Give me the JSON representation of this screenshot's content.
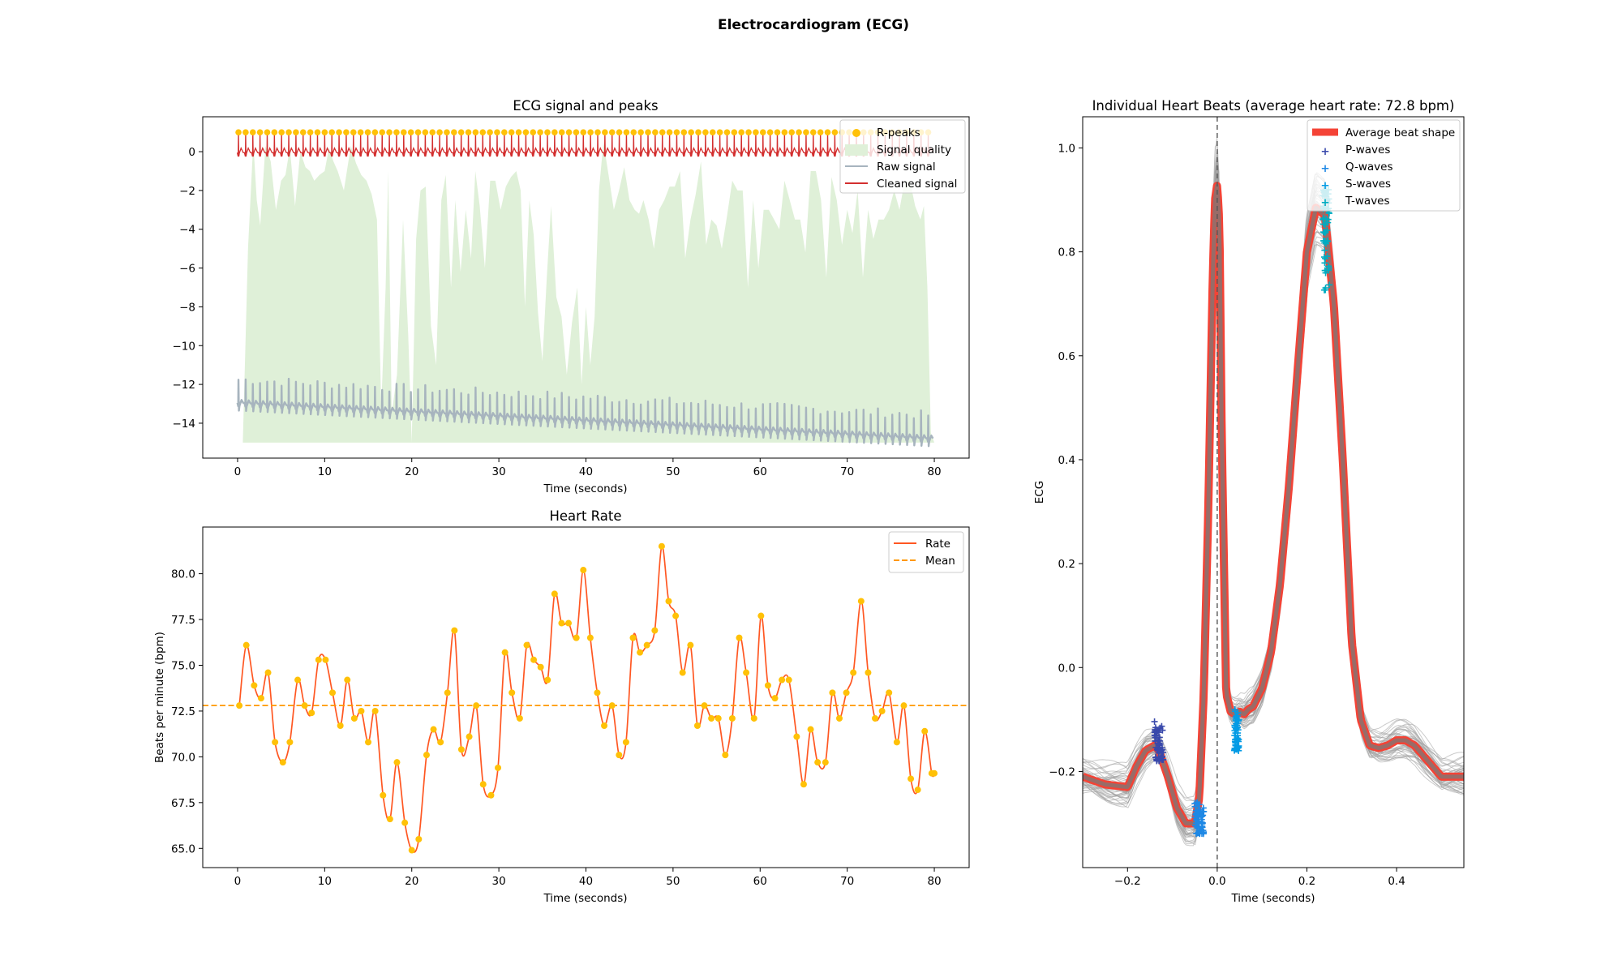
{
  "figure": {
    "suptitle": "Electrocardiogram (ECG)"
  },
  "chart_data": [
    {
      "type": "line",
      "title": "ECG signal and peaks",
      "xlabel": "Time (seconds)",
      "ylabel": "",
      "xlim": [
        -4,
        84
      ],
      "ylim": [
        -15.8,
        1.8
      ],
      "xticks": [
        0,
        10,
        20,
        30,
        40,
        50,
        60,
        70,
        80
      ],
      "yticks": [
        0,
        -2,
        -4,
        -6,
        -8,
        -10,
        -12,
        -14
      ],
      "ytick_labels": [
        "0",
        "−2",
        "−4",
        "−6",
        "−8",
        "−10",
        "−12",
        "−14"
      ],
      "legend_position": "upper right",
      "series": [
        {
          "name": "R-peaks",
          "kind": "markers",
          "color": "#FFC107",
          "y_value": 1.0,
          "beat_interval_s": 0.825,
          "x_range": [
            0.1,
            80.0
          ]
        },
        {
          "name": "Signal quality",
          "kind": "area",
          "color": "#DFF0D8",
          "baseline": -15,
          "x": [
            0.0,
            0.6,
            1.2,
            1.8,
            2.2,
            2.6,
            3.2,
            3.8,
            4.4,
            5.0,
            5.5,
            6.0,
            6.6,
            7.2,
            7.8,
            8.3,
            8.8,
            9.4,
            10.0,
            10.5,
            11.0,
            11.5,
            12.2,
            13.0,
            13.6,
            14.2,
            14.8,
            15.4,
            16.0,
            16.5,
            17.0,
            17.3,
            17.7,
            18.3,
            19.0,
            19.6,
            20.0,
            20.5,
            21.0,
            21.6,
            22.2,
            22.8,
            23.4,
            23.9,
            24.5,
            25.0,
            25.6,
            26.2,
            26.8,
            27.3,
            27.8,
            28.4,
            29.0,
            29.6,
            30.2,
            30.8,
            31.4,
            32.0,
            32.5,
            33.0,
            33.5,
            34.0,
            34.5,
            35.0,
            35.5,
            36.0,
            36.6,
            37.2,
            37.8,
            38.4,
            39.0,
            39.5,
            40.0,
            40.5,
            41.0,
            41.5,
            42.0,
            42.6,
            43.2,
            43.8,
            44.4,
            45.0,
            45.6,
            46.1,
            46.6,
            47.2,
            47.8,
            48.4,
            49.0,
            49.6,
            50.2,
            50.8,
            51.4,
            52.0,
            52.6,
            53.2,
            53.8,
            54.4,
            55.0,
            55.6,
            56.2,
            56.8,
            57.4,
            58.0,
            58.6,
            59.2,
            59.8,
            60.4,
            61.0,
            61.6,
            62.2,
            62.8,
            63.4,
            64.0,
            64.6,
            65.2,
            65.8,
            66.4,
            67.0,
            67.6,
            68.2,
            68.8,
            69.4,
            70.0,
            70.6,
            71.2,
            71.8,
            72.4,
            73.0,
            73.6,
            74.2,
            74.8,
            75.4,
            76.0,
            76.6,
            77.2,
            77.8,
            78.4,
            78.8,
            79.2,
            79.6,
            80.0
          ],
          "y": [
            -15.0,
            -15.0,
            -5.0,
            0.5,
            -2.5,
            -3.8,
            0.3,
            -0.5,
            -3.0,
            -1.5,
            -1.2,
            0.2,
            -2.8,
            0.0,
            -0.8,
            -1.0,
            -1.5,
            -1.2,
            -1.0,
            0.2,
            -0.5,
            -1.0,
            -2.0,
            0.3,
            -0.6,
            -1.2,
            -1.5,
            -2.2,
            -3.5,
            -13.2,
            -7.0,
            -1.0,
            -13.5,
            -11.5,
            -3.5,
            -9.5,
            -15.0,
            -4.5,
            -2.0,
            -1.8,
            -9.0,
            -11.0,
            -2.5,
            -1.2,
            -7.0,
            -2.5,
            -6.2,
            -3.0,
            -5.5,
            -1.0,
            -2.8,
            -6.0,
            -1.5,
            -1.5,
            -3.0,
            -1.8,
            -1.3,
            -1.0,
            -2.0,
            -8.0,
            -2.5,
            -4.3,
            -8.3,
            -10.8,
            -6.5,
            -2.8,
            -7.5,
            -8.5,
            -11.5,
            -8.8,
            -7.0,
            -12.0,
            -8.0,
            -11.0,
            -8.5,
            -2.0,
            0.5,
            -1.2,
            -3.0,
            -2.0,
            -0.8,
            -2.5,
            -3.0,
            -3.2,
            -2.5,
            -3.5,
            -5.0,
            -3.0,
            -2.5,
            -1.8,
            -1.8,
            -1.0,
            -5.5,
            -3.5,
            -2.2,
            -0.5,
            -4.8,
            -3.5,
            -3.8,
            -5.0,
            -3.3,
            -1.5,
            -2.0,
            -2.0,
            -7.0,
            -2.5,
            -6.0,
            -3.0,
            -3.0,
            -3.5,
            -4.0,
            -1.5,
            -2.5,
            -3.5,
            -3.5,
            -5.2,
            -1.0,
            -1.0,
            -2.5,
            -6.5,
            -1.3,
            -2.5,
            -4.8,
            -3.0,
            -4.2,
            -2.0,
            -6.5,
            -3.0,
            -4.5,
            -3.5,
            -3.5,
            -3.0,
            -2.0,
            -3.0,
            -1.5,
            -1.5,
            -2.8,
            -3.5,
            -2.8,
            -7.0,
            -14.5,
            -15.0
          ]
        },
        {
          "name": "Raw signal",
          "kind": "line",
          "color": "#A7B4BE",
          "baseline_start": -13.0,
          "baseline_end": -14.85,
          "peak_amplitude": 1.35
        },
        {
          "name": "Cleaned signal",
          "kind": "line",
          "color": "#D32F2F",
          "baseline": 0.0,
          "peak_value": 1.0,
          "trough_value": -0.25
        }
      ]
    },
    {
      "type": "line",
      "title": "Heart Rate",
      "xlabel": "Time (seconds)",
      "ylabel": "Beats per minute (bpm)",
      "xlim": [
        -4,
        84
      ],
      "ylim": [
        63.95,
        82.55
      ],
      "xticks": [
        0,
        10,
        20,
        30,
        40,
        50,
        60,
        70,
        80
      ],
      "yticks": [
        65.0,
        67.5,
        70.0,
        72.5,
        75.0,
        77.5,
        80.0
      ],
      "ytick_labels": [
        "65.0",
        "67.5",
        "70.0",
        "72.5",
        "75.0",
        "77.5",
        "80.0"
      ],
      "legend_position": "upper right",
      "series": [
        {
          "name": "Rate",
          "color": "#FF5722",
          "marker_color": "#FFC107",
          "x": [
            0.2,
            1.0,
            1.9,
            2.7,
            3.5,
            4.3,
            5.2,
            6.0,
            6.9,
            7.7,
            8.5,
            9.3,
            10.1,
            10.9,
            11.8,
            12.6,
            13.4,
            14.2,
            15.0,
            15.8,
            16.7,
            17.5,
            18.3,
            19.2,
            20.0,
            20.8,
            21.7,
            22.5,
            23.3,
            24.1,
            24.9,
            25.7,
            26.6,
            27.4,
            28.2,
            29.1,
            29.9,
            30.7,
            31.5,
            32.4,
            33.2,
            34.0,
            34.8,
            35.6,
            36.4,
            37.2,
            38.0,
            38.9,
            39.7,
            40.5,
            41.3,
            42.1,
            43.0,
            43.8,
            44.6,
            45.4,
            46.2,
            47.0,
            47.9,
            48.7,
            49.5,
            50.3,
            51.1,
            52.0,
            52.8,
            53.6,
            54.4,
            55.2,
            56.0,
            56.8,
            57.6,
            58.4,
            59.3,
            60.1,
            60.9,
            61.7,
            62.5,
            63.3,
            64.2,
            65.0,
            65.8,
            66.6,
            67.5,
            68.3,
            69.1,
            69.9,
            70.7,
            71.6,
            72.4,
            73.2,
            74.0,
            74.8,
            75.7,
            76.5,
            77.3,
            78.1,
            78.9,
            79.7,
            80.0
          ],
          "y": [
            72.8,
            76.1,
            73.9,
            73.2,
            74.6,
            70.8,
            69.7,
            70.8,
            74.2,
            72.8,
            72.4,
            75.3,
            75.3,
            73.5,
            71.7,
            74.2,
            72.1,
            72.5,
            70.8,
            72.5,
            67.9,
            66.6,
            69.7,
            66.4,
            64.9,
            65.5,
            70.1,
            71.5,
            70.8,
            73.5,
            76.9,
            70.4,
            71.1,
            72.8,
            68.5,
            67.9,
            69.4,
            75.7,
            73.5,
            72.1,
            76.1,
            75.3,
            74.9,
            74.2,
            78.9,
            77.3,
            77.3,
            76.5,
            80.2,
            76.5,
            73.5,
            71.7,
            72.8,
            70.1,
            70.8,
            76.5,
            75.7,
            76.1,
            76.9,
            81.5,
            78.5,
            77.7,
            74.6,
            76.1,
            71.7,
            72.8,
            72.1,
            72.1,
            70.1,
            72.1,
            76.5,
            74.6,
            72.1,
            77.7,
            73.9,
            73.2,
            74.2,
            74.2,
            71.1,
            68.5,
            71.5,
            69.7,
            69.7,
            73.5,
            72.1,
            73.5,
            74.6,
            78.5,
            74.6,
            72.1,
            72.5,
            73.5,
            70.8,
            72.8,
            68.8,
            68.2,
            71.4,
            69.1,
            69.1
          ]
        },
        {
          "name": "Mean",
          "kind": "hline",
          "style": "dashed",
          "color": "#FF9800",
          "value": 72.8
        }
      ]
    },
    {
      "type": "line",
      "title": "Individual Heart Beats (average heart rate: 72.8 bpm)",
      "xlabel": "Time (seconds)",
      "ylabel": "ECG",
      "xlim": [
        -0.3,
        0.55
      ],
      "ylim": [
        -0.385,
        1.06
      ],
      "xticks": [
        -0.2,
        0.0,
        0.2,
        0.4
      ],
      "xtick_labels": [
        "−0.2",
        "0.0",
        "0.2",
        "0.4"
      ],
      "yticks": [
        -0.2,
        0.0,
        0.2,
        0.4,
        0.6,
        0.8,
        1.0
      ],
      "ytick_labels": [
        "−0.2",
        "0.0",
        "0.2",
        "0.4",
        "0.6",
        "0.8",
        "1.0"
      ],
      "vline": {
        "x": 0.0,
        "style": "dashed",
        "color": "#555555"
      },
      "legend_position": "upper right",
      "series": [
        {
          "name": "Average beat shape",
          "color": "#F44336",
          "x": [
            -0.3,
            -0.25,
            -0.2,
            -0.18,
            -0.16,
            -0.14,
            -0.13,
            -0.11,
            -0.09,
            -0.07,
            -0.05,
            -0.04,
            -0.03,
            -0.02,
            -0.01,
            -0.005,
            0.0,
            0.005,
            0.01,
            0.02,
            0.03,
            0.04,
            0.05,
            0.06,
            0.07,
            0.08,
            0.1,
            0.12,
            0.14,
            0.16,
            0.18,
            0.2,
            0.22,
            0.24,
            0.26,
            0.28,
            0.3,
            0.32,
            0.34,
            0.36,
            0.38,
            0.4,
            0.42,
            0.44,
            0.46,
            0.48,
            0.5,
            0.55
          ],
          "y": [
            -0.21,
            -0.225,
            -0.23,
            -0.19,
            -0.16,
            -0.15,
            -0.16,
            -0.21,
            -0.27,
            -0.3,
            -0.3,
            -0.25,
            -0.05,
            0.3,
            0.75,
            0.9,
            0.93,
            0.85,
            0.45,
            -0.05,
            -0.085,
            -0.09,
            -0.085,
            -0.09,
            -0.08,
            -0.075,
            -0.04,
            0.03,
            0.16,
            0.35,
            0.58,
            0.8,
            0.885,
            0.87,
            0.7,
            0.4,
            0.05,
            -0.1,
            -0.15,
            -0.155,
            -0.15,
            -0.14,
            -0.14,
            -0.15,
            -0.17,
            -0.19,
            -0.21,
            -0.21
          ]
        },
        {
          "name": "P-waves",
          "kind": "markers",
          "marker": "+",
          "color": "#3949AB",
          "x_range": [
            -0.14,
            -0.12
          ],
          "y_range": [
            -0.18,
            -0.095
          ]
        },
        {
          "name": "Q-waves",
          "kind": "markers",
          "marker": "+",
          "color": "#1E88E5",
          "x_range": [
            -0.05,
            -0.03
          ],
          "y_range": [
            -0.32,
            -0.25
          ]
        },
        {
          "name": "S-waves",
          "kind": "markers",
          "marker": "+",
          "color": "#039BE5",
          "x_range": [
            0.038,
            0.048
          ],
          "y_range": [
            -0.16,
            -0.07
          ]
        },
        {
          "name": "T-waves",
          "kind": "markers",
          "marker": "+",
          "color": "#00ACC1",
          "x_range": [
            0.235,
            0.25
          ],
          "y_range": [
            0.73,
            0.93
          ]
        }
      ]
    }
  ]
}
